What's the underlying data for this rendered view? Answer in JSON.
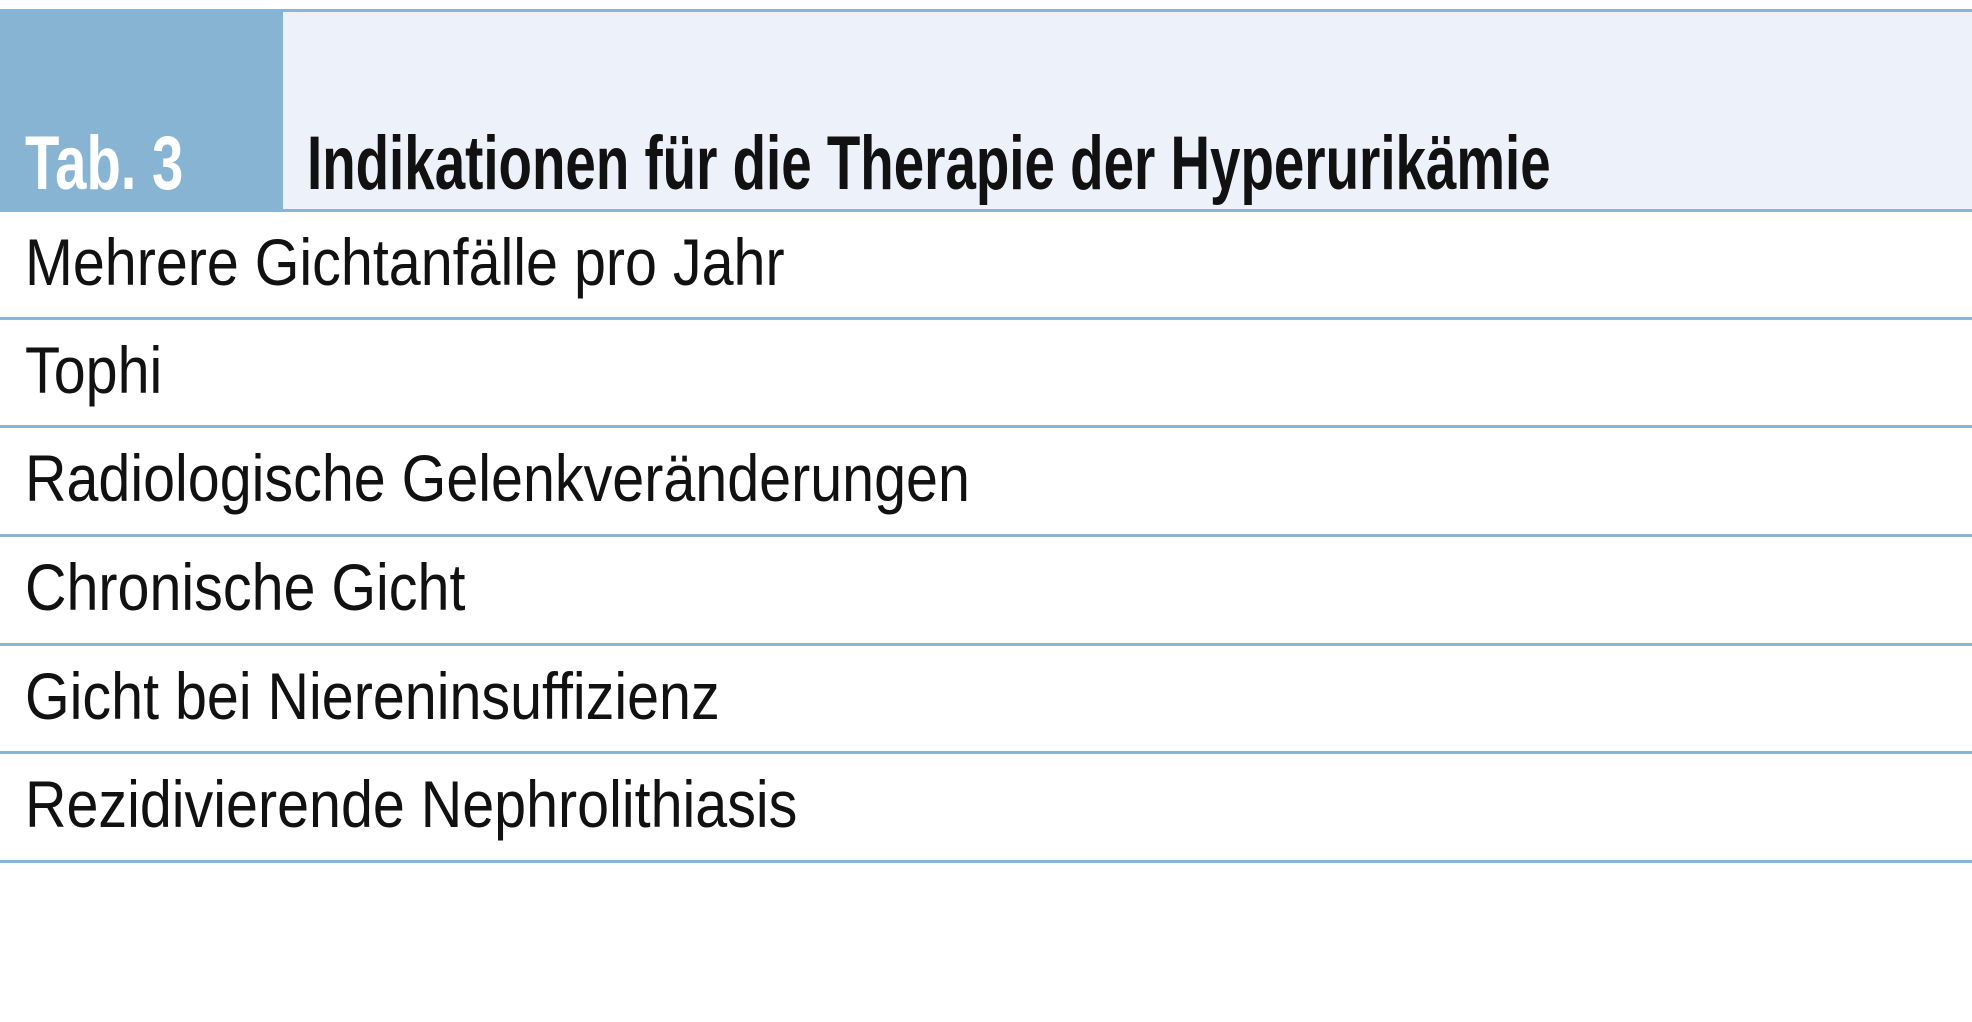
{
  "table": {
    "label": "Tab. 3",
    "title": "Indikationen für die Therapie der Hyperurikämie",
    "rows": [
      "Mehrere Gichtanfälle pro Jahr",
      "Tophi",
      "Radiologische Gelenkveränderungen",
      "Chronische Gicht",
      "Gicht bei Niereninsuffizienz",
      "Rezidivierende Nephrolithiasis"
    ],
    "colors": {
      "accent": "#88b4d4",
      "header_bg": "#edf2fa",
      "rule": "#8ab4d6"
    }
  }
}
